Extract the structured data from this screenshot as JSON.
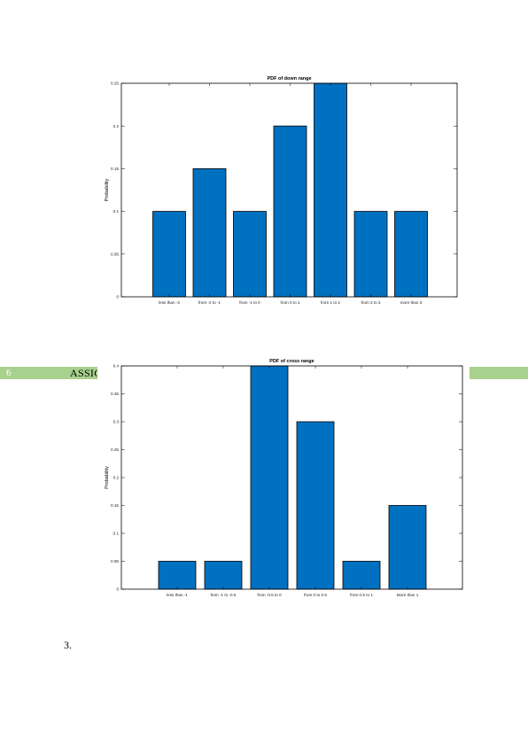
{
  "header": {
    "page_number": "6",
    "title": "ASSIGNMENT"
  },
  "list_marker": "3.",
  "colors": {
    "bar": "#0070c0",
    "header_band": "#a9d18e"
  },
  "chart_data": [
    {
      "type": "bar",
      "title": "PDF of down range",
      "xlabel": "",
      "ylabel": "Probability",
      "ylim": [
        0,
        0.25
      ],
      "yticks": [
        "0",
        "0.05",
        "0.1",
        "0.15",
        "0.2",
        "0.25"
      ],
      "categories": [
        "less than -2",
        "from -2 to -1",
        "from -1 to 0",
        "from 0 to 1",
        "from 1 to 2",
        "from 2 to 3",
        "more than 3"
      ],
      "values": [
        0.1,
        0.15,
        0.1,
        0.2,
        0.25,
        0.1,
        0.1
      ],
      "grid": false
    },
    {
      "type": "bar",
      "title": "PDF of cross range",
      "xlabel": "",
      "ylabel": "Probability",
      "ylim": [
        0,
        0.4
      ],
      "yticks": [
        "0",
        "0.05",
        "0.1",
        "0.15",
        "0.2",
        "0.25",
        "0.3",
        "0.35",
        "0.4"
      ],
      "categories": [
        "less than -1",
        "from -1 to -0.5",
        "from -0.5 to 0",
        "from 0 to 0.5",
        "from 0.5 to 1",
        "More than 1"
      ],
      "values": [
        0.05,
        0.05,
        0.4,
        0.3,
        0.05,
        0.15
      ],
      "grid": false
    }
  ]
}
